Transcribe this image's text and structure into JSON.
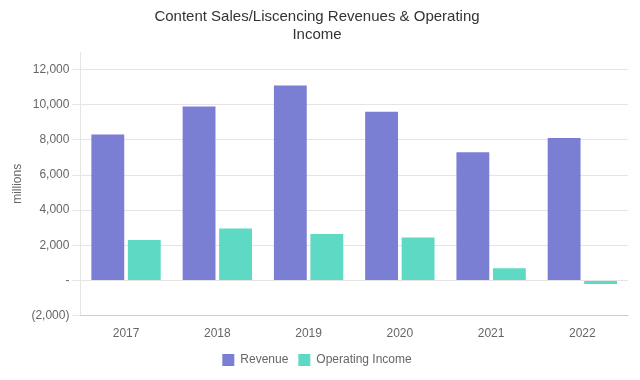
{
  "chart_data": {
    "type": "bar",
    "title": "Content Sales/Liscencing Revenues & Operating\nIncome",
    "y_label": "millions",
    "categories": [
      "2017",
      "2018",
      "2019",
      "2020",
      "2021",
      "2022"
    ],
    "series": [
      {
        "name": "Revenue",
        "color": "#7B7FD4",
        "values": [
          8300,
          9900,
          11100,
          9600,
          7300,
          8100
        ]
      },
      {
        "name": "Operating Income",
        "color": "#5DD9C4",
        "values": [
          2300,
          2950,
          2650,
          2450,
          700,
          -200
        ]
      }
    ],
    "ylim": [
      -2000,
      13000
    ],
    "yticks": [
      {
        "value": -2000,
        "label": "(2,000)"
      },
      {
        "value": 0,
        "label": "-"
      },
      {
        "value": 2000,
        "label": "2,000"
      },
      {
        "value": 4000,
        "label": "4,000"
      },
      {
        "value": 6000,
        "label": "6,000"
      },
      {
        "value": 8000,
        "label": "8,000"
      },
      {
        "value": 10000,
        "label": "10,000"
      },
      {
        "value": 12000,
        "label": "12,000"
      }
    ],
    "grid": true,
    "legend": "bottom"
  }
}
